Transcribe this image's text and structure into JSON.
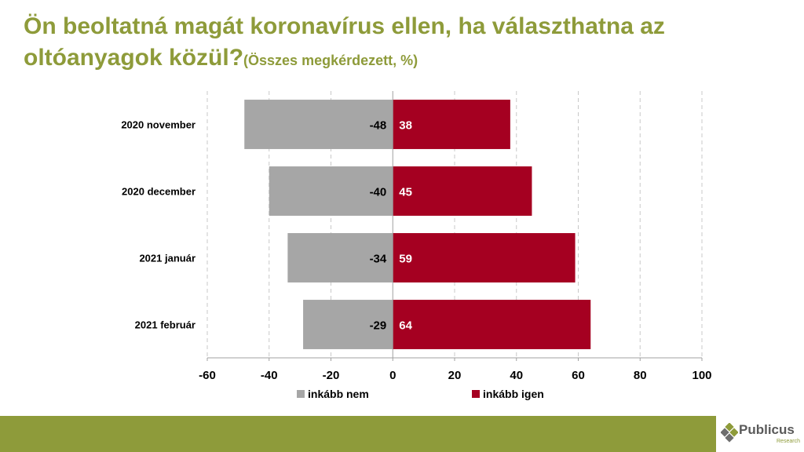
{
  "title": {
    "main": "Ön beoltatná magát koronavírus ellen, ha választhatna az oltóanyagok közül?",
    "sub": "(Összes megkérdezett, %)"
  },
  "colors": {
    "title": "#8e9b3a",
    "footer": "#8e9b3a",
    "nem": "#a6a6a6",
    "igen": "#a50021"
  },
  "chart_data": {
    "type": "bar",
    "orientation": "horizontal",
    "stacked": "diverging",
    "categories": [
      "2020 november",
      "2020 december",
      "2021 január",
      "2021 február"
    ],
    "series": [
      {
        "name": "inkább nem",
        "values": [
          -48,
          -40,
          -34,
          -29
        ],
        "color": "#a6a6a6"
      },
      {
        "name": "inkább igen",
        "values": [
          38,
          45,
          59,
          64
        ],
        "color": "#a50021"
      }
    ],
    "xlim": [
      -60,
      100
    ],
    "xticks": [
      -60,
      -40,
      -20,
      0,
      20,
      40,
      60,
      80,
      100
    ],
    "grid": "vertical dashed",
    "legend": "bottom"
  },
  "logo": {
    "name": "Publicus",
    "tagline": "Research",
    "icon": "publicus-logo-icon"
  }
}
